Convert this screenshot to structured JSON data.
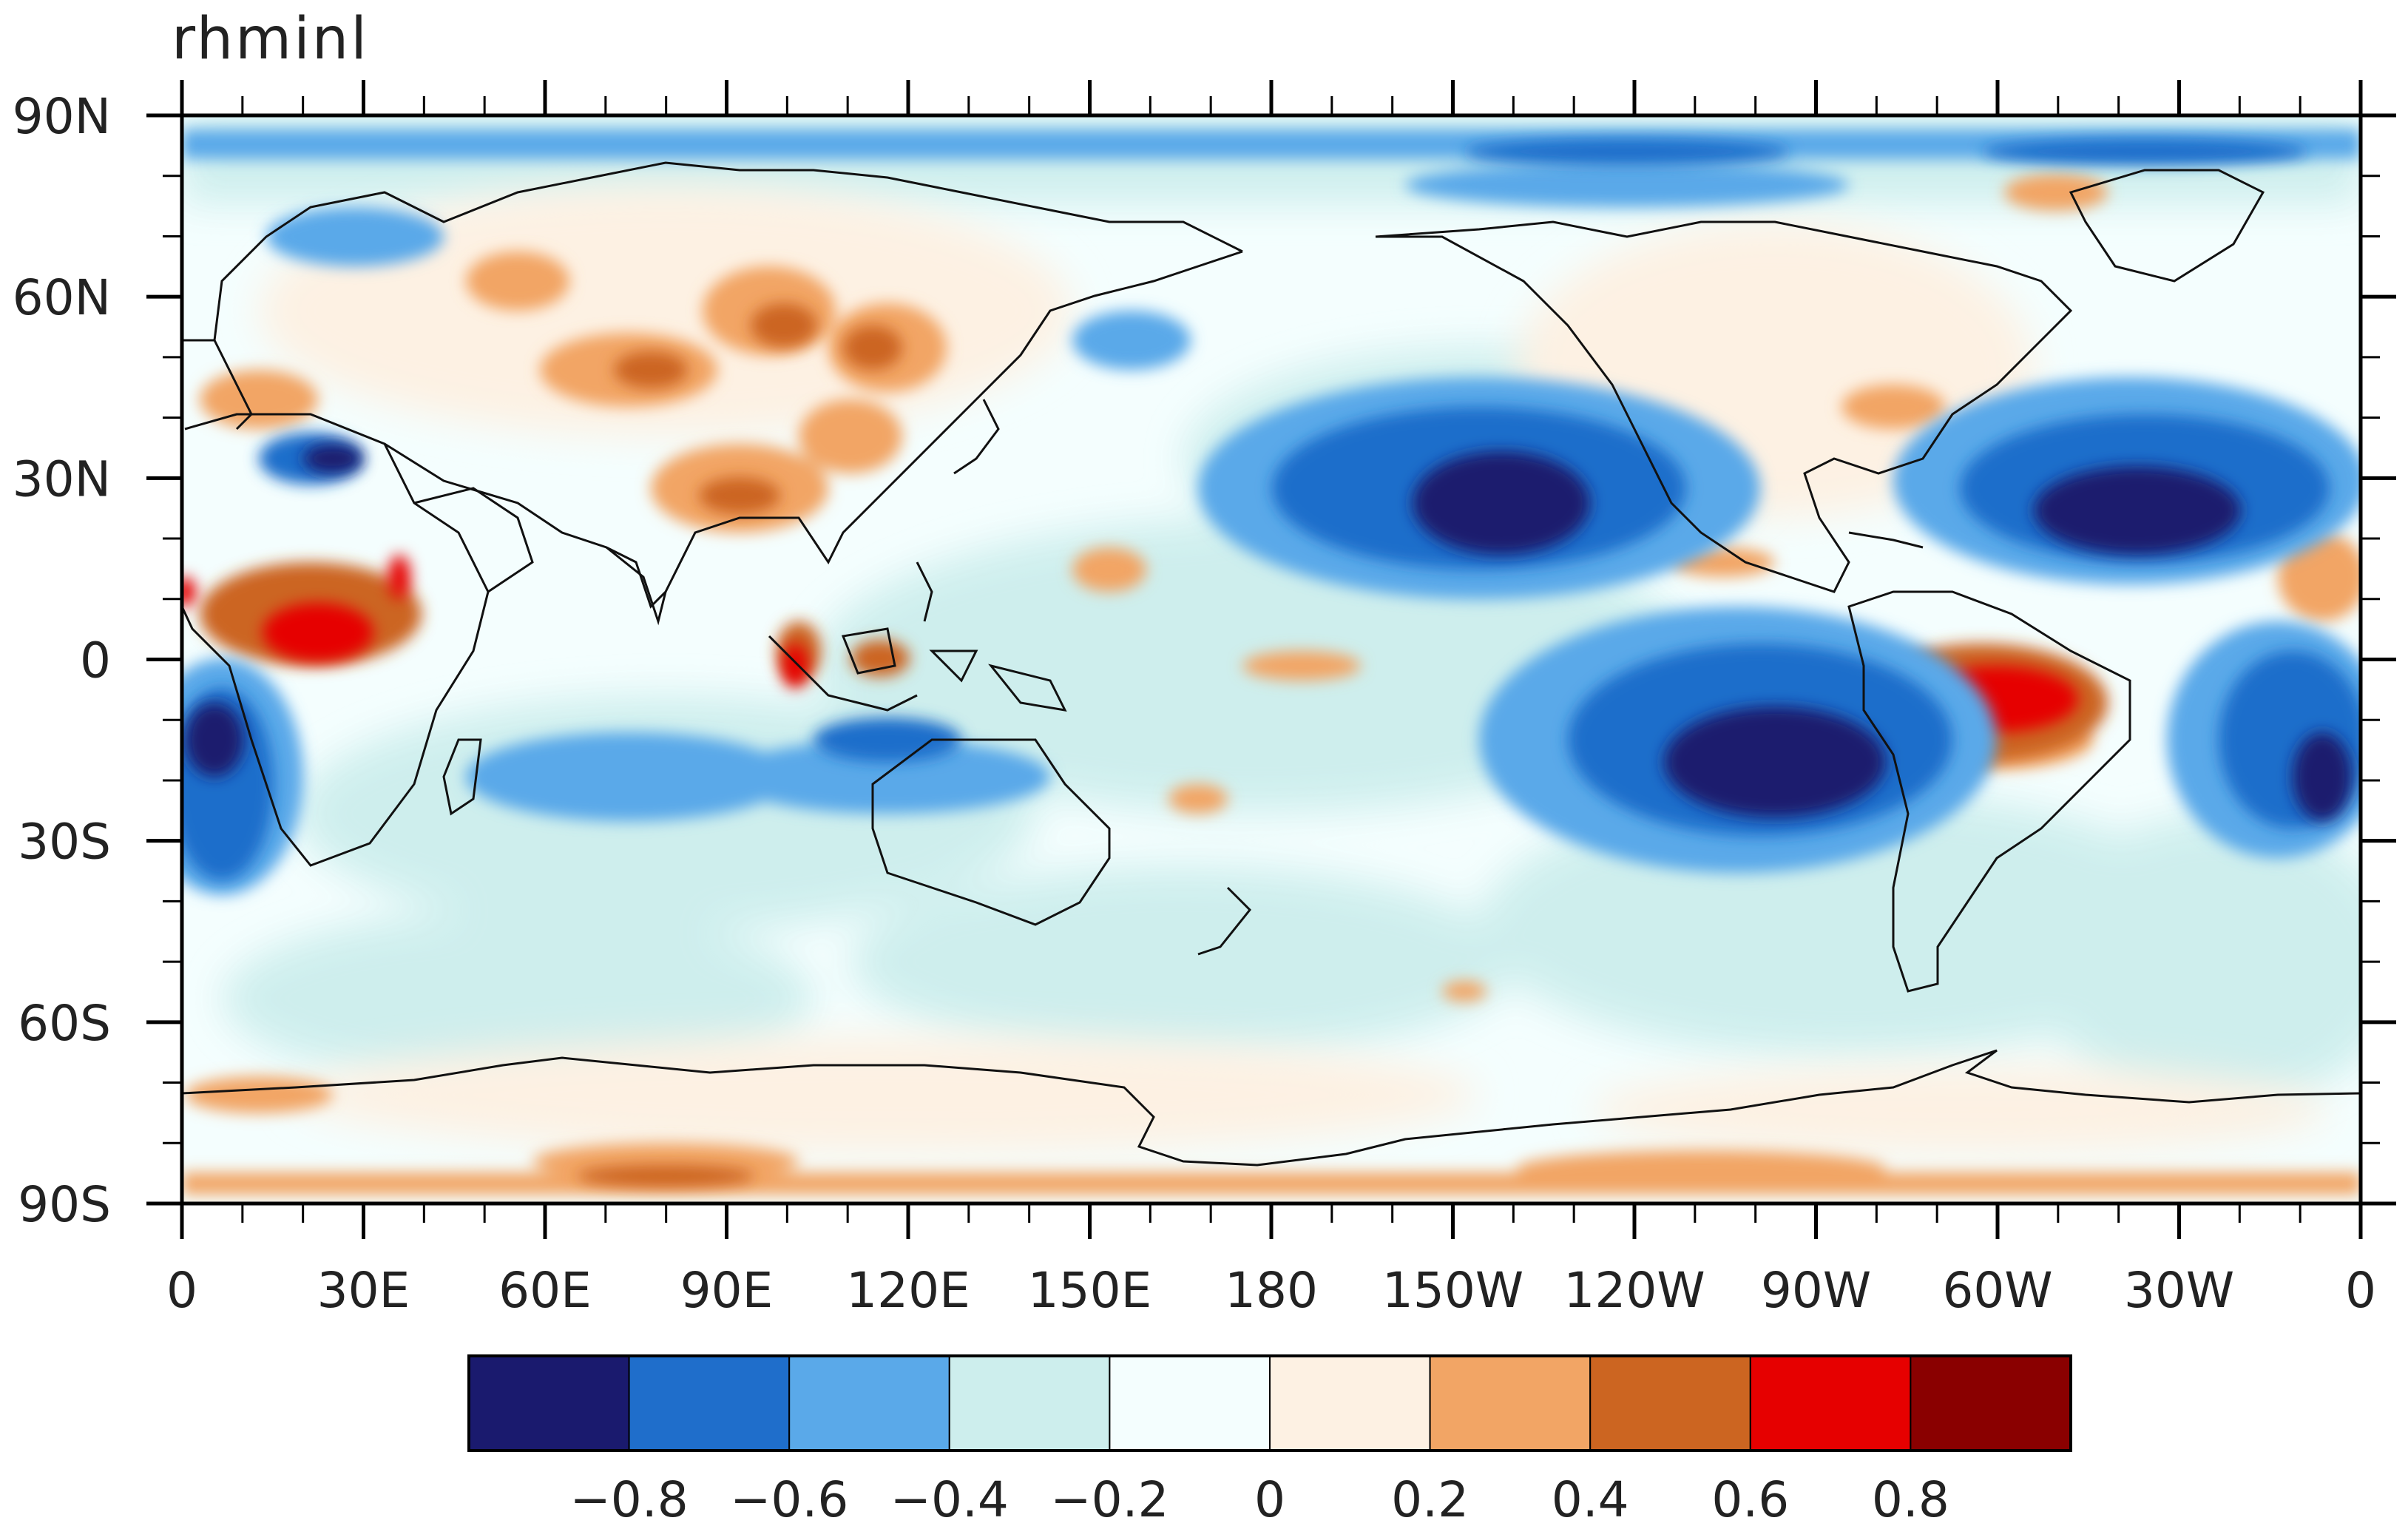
{
  "title": "rhminl",
  "map": {
    "projection": "cylindrical-equidistant",
    "lon_range": [
      0,
      360
    ],
    "lat_range": [
      -90,
      90
    ],
    "coastlines": true,
    "x_tick_labels": [
      "0",
      "30E",
      "60E",
      "90E",
      "120E",
      "150E",
      "180",
      "150W",
      "120W",
      "90W",
      "60W",
      "30W",
      "0"
    ],
    "y_tick_labels": [
      "90N",
      "60N",
      "30N",
      "0",
      "30S",
      "60S",
      "90S"
    ]
  },
  "colorbar": {
    "orientation": "horizontal",
    "colors": [
      "#1a1a6e",
      "#1f6ecb",
      "#5aa9e9",
      "#cdeeed",
      "#f4fefe",
      "#fdf1e3",
      "#f2a565",
      "#cc6521",
      "#e60000",
      "#8a0000"
    ],
    "tick_labels": [
      "−0.8",
      "−0.6",
      "−0.4",
      "−0.2",
      "0",
      "0.2",
      "0.4",
      "0.6",
      "0.8"
    ]
  },
  "field_regions": [
    {
      "name": "north-pacific-negative",
      "value": -0.8,
      "lon": 200,
      "lat": 28
    },
    {
      "name": "north-atlantic-negative",
      "value": -0.8,
      "lon": 320,
      "lat": 25
    },
    {
      "name": "southeast-pacific-negative",
      "value": -0.8,
      "lon": 250,
      "lat": -18
    },
    {
      "name": "amazon-positive",
      "value": 0.6,
      "lon": 300,
      "lat": -8
    },
    {
      "name": "central-africa-positive",
      "value": 0.6,
      "lon": 22,
      "lat": 5
    },
    {
      "name": "maritime-continent-positive",
      "value": 0.6,
      "lon": 102,
      "lat": -2
    },
    {
      "name": "antarctica-positive",
      "value": 0.4,
      "lon": 60,
      "lat": -82
    }
  ]
}
